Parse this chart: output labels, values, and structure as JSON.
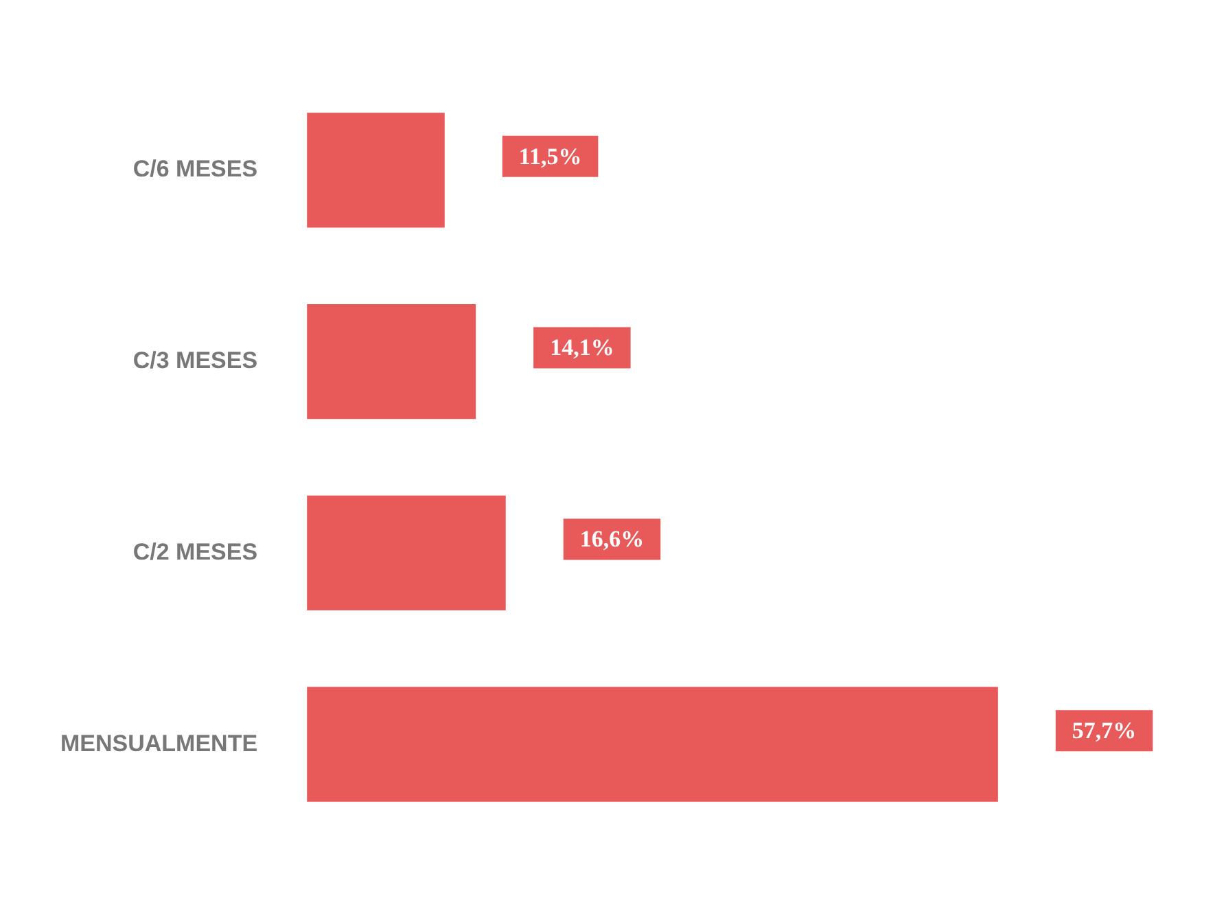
{
  "chart_data": {
    "type": "bar",
    "orientation": "horizontal",
    "categories": [
      "C/6 MESES",
      "C/3 MESES",
      "C/2 MESES",
      "MENSUALMENTE"
    ],
    "values": [
      11.5,
      14.1,
      16.6,
      57.7
    ],
    "value_labels": [
      "11,5%",
      "14,1%",
      "16,6%",
      "57,7%"
    ],
    "color": "#e85a5a",
    "grid": false,
    "legend": false
  }
}
